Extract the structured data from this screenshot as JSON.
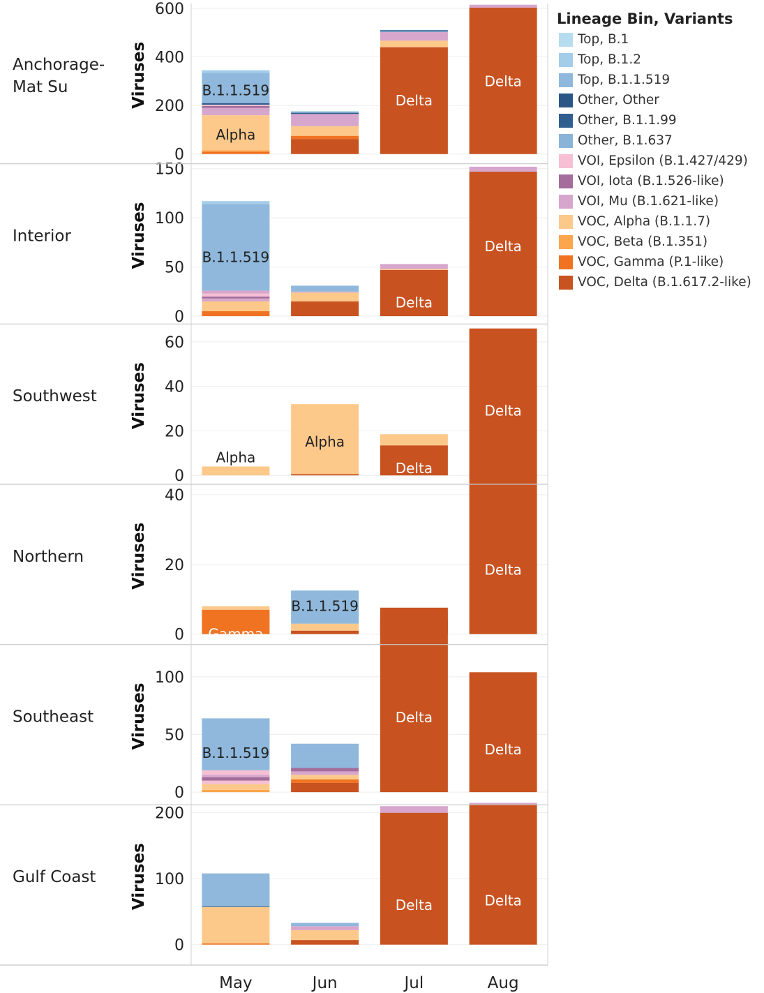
{
  "chart_data": {
    "type": "bar",
    "stacked": true,
    "y_axis_title": "Viruses",
    "x_categories": [
      "May",
      "Jun",
      "Jul",
      "Aug"
    ],
    "legend": {
      "title": "Lineage Bin, Variants",
      "placement": "right",
      "items": [
        {
          "key": "top_b1",
          "label": "Top, B.1",
          "color": "#b6dcef"
        },
        {
          "key": "top_b12",
          "label": "Top, B.1.2",
          "color": "#a4cde9"
        },
        {
          "key": "top_b11519",
          "label": "Top, B.1.1.519",
          "color": "#8fb8dc"
        },
        {
          "key": "other_other",
          "label": "Other,  Other",
          "color": "#2b5686"
        },
        {
          "key": "other_b1199",
          "label": "Other, B.1.1.99",
          "color": "#2f5e8f"
        },
        {
          "key": "other_b1637",
          "label": "Other, B.1.637",
          "color": "#8ab4d7"
        },
        {
          "key": "voi_epsilon",
          "label": "VOI, Epsilon (B.1.427/429)",
          "color": "#f6bfd3"
        },
        {
          "key": "voi_iota",
          "label": "VOI, Iota (B.1.526-like)",
          "color": "#a46d9b"
        },
        {
          "key": "voi_mu",
          "label": "VOI, Mu (B.1.621-like)",
          "color": "#d7a6cc"
        },
        {
          "key": "voc_alpha",
          "label": "VOC, Alpha (B.1.1.7)",
          "color": "#fdc98b"
        },
        {
          "key": "voc_beta",
          "label": "VOC, Beta (B.1.351)",
          "color": "#fba54c"
        },
        {
          "key": "voc_gamma",
          "label": "VOC, Gamma (P.1-like)",
          "color": "#f07322"
        },
        {
          "key": "voc_delta",
          "label": "VOC, Delta (B.1.617.2-like)",
          "color": "#c85220"
        }
      ]
    },
    "panels": [
      {
        "region": "Anchorage-\nMat Su",
        "ticks": [
          0,
          200,
          400,
          600
        ],
        "ylim": [
          -40,
          620
        ],
        "bars": [
          {
            "segments": [
              [
                "voc_gamma",
                10
              ],
              [
                "voc_beta",
                5
              ],
              [
                "voc_alpha",
                145
              ],
              [
                "voi_mu",
                30
              ],
              [
                "voi_iota",
                8
              ],
              [
                "voi_epsilon",
                5
              ],
              [
                "other_b1199",
                7
              ],
              [
                "top_b11519",
                125
              ],
              [
                "top_b12",
                8
              ],
              [
                "top_b1",
                3
              ]
            ],
            "labels": [
              {
                "text": "Alpha",
                "value": 80,
                "color": "#222222"
              },
              {
                "text": "B.1.1.519",
                "value": 262,
                "color": "#222222"
              }
            ]
          },
          {
            "segments": [
              [
                "voc_delta",
                62
              ],
              [
                "voc_gamma",
                13
              ],
              [
                "voc_alpha",
                40
              ],
              [
                "voi_mu",
                50
              ],
              [
                "other_b1199",
                5
              ],
              [
                "top_b11519",
                5
              ],
              [
                "top_b1",
                2
              ]
            ],
            "labels": []
          },
          {
            "segments": [
              [
                "voc_delta",
                440
              ],
              [
                "voc_alpha",
                27
              ],
              [
                "voi_mu",
                35
              ],
              [
                "top_b11519",
                3
              ],
              [
                "other_b1199",
                5
              ]
            ],
            "labels": [
              {
                "text": "Delta",
                "value": 220,
                "color": "#ffffff"
              }
            ]
          },
          {
            "segments": [
              [
                "voc_delta",
                603
              ],
              [
                "voi_mu",
                12
              ]
            ],
            "labels": [
              {
                "text": "Delta",
                "value": 300,
                "color": "#ffffff"
              }
            ]
          }
        ]
      },
      {
        "region": "Interior",
        "ticks": [
          0,
          50,
          100,
          150
        ],
        "ylim": [
          -8,
          155
        ],
        "bars": [
          {
            "segments": [
              [
                "voc_gamma",
                5
              ],
              [
                "voc_alpha",
                10
              ],
              [
                "voi_mu",
                3
              ],
              [
                "voi_iota",
                2
              ],
              [
                "voi_epsilon",
                3
              ],
              [
                "voi_mu",
                3
              ],
              [
                "top_b11519",
                88
              ],
              [
                "top_b12",
                3
              ]
            ],
            "labels": [
              {
                "text": "B.1.1.519",
                "value": 60,
                "color": "#222222"
              }
            ]
          },
          {
            "segments": [
              [
                "voc_delta",
                15
              ],
              [
                "voc_alpha",
                9
              ],
              [
                "voi_mu",
                1
              ],
              [
                "top_b11519",
                6
              ]
            ],
            "labels": []
          },
          {
            "segments": [
              [
                "voc_delta",
                47
              ],
              [
                "voc_alpha",
                1
              ],
              [
                "voi_mu",
                5
              ]
            ],
            "labels": [
              {
                "text": "Delta",
                "value": 14,
                "color": "#ffffff"
              }
            ]
          },
          {
            "segments": [
              [
                "voc_delta",
                147
              ],
              [
                "voi_mu",
                5
              ]
            ],
            "labels": [
              {
                "text": "Delta",
                "value": 71,
                "color": "#ffffff"
              }
            ]
          }
        ]
      },
      {
        "region": "Southwest",
        "ticks": [
          0,
          20,
          40,
          60
        ],
        "ylim": [
          -4,
          68
        ],
        "bars": [
          {
            "segments": [
              [
                "voc_alpha",
                4
              ]
            ],
            "labels": [
              {
                "text": "Alpha",
                "value": 8,
                "color": "#222222"
              }
            ]
          },
          {
            "segments": [
              [
                "voc_delta",
                0.6
              ],
              [
                "voc_alpha",
                31.4
              ]
            ],
            "labels": [
              {
                "text": "Alpha",
                "value": 15.2,
                "color": "#222222"
              }
            ]
          },
          {
            "segments": [
              [
                "voc_delta",
                13.5
              ],
              [
                "voc_alpha",
                5
              ]
            ],
            "labels": [
              {
                "text": "Delta",
                "value": 3.2,
                "color": "#ffffff"
              }
            ]
          },
          {
            "segments": [
              [
                "voc_delta",
                66
              ]
            ],
            "labels": [
              {
                "text": "Delta",
                "value": 29,
                "color": "#ffffff"
              }
            ]
          }
        ]
      },
      {
        "region": "Northern",
        "ticks": [
          0,
          20,
          40
        ],
        "ylim": [
          -3,
          43
        ],
        "bars": [
          {
            "segments": [
              [
                "voc_gamma",
                7
              ],
              [
                "voc_alpha",
                1
              ]
            ],
            "labels": [
              {
                "text": "Gamma",
                "value": 0,
                "color": "#ffffff"
              }
            ]
          },
          {
            "segments": [
              [
                "voc_delta",
                1
              ],
              [
                "voc_alpha",
                2
              ],
              [
                "top_b11519",
                9.5
              ]
            ],
            "labels": [
              {
                "text": "B.1.1.519",
                "value": 8,
                "color": "#222222"
              }
            ]
          },
          {
            "segments": [
              [
                "voc_delta",
                4
              ],
              [
                "voc_alpha",
                1
              ],
              [
                "voi_mu",
                1.5
              ]
            ],
            "labels": []
          },
          {
            "segments": [
              [
                "voc_delta",
                46
              ]
            ],
            "labels": [
              {
                "text": "Delta",
                "value": 18.5,
                "color": "#ffffff"
              }
            ]
          }
        ]
      },
      {
        "region": "Southeast",
        "ticks": [
          0,
          50,
          100
        ],
        "ylim": [
          -11,
          128
        ],
        "bars": [
          {
            "segments": [
              [
                "voc_beta",
                2
              ],
              [
                "voc_alpha",
                5
              ],
              [
                "voi_epsilon",
                3
              ],
              [
                "voi_iota",
                3
              ],
              [
                "voi_mu",
                2
              ],
              [
                "voi_epsilon",
                4
              ],
              [
                "top_b11519",
                45
              ]
            ],
            "labels": [
              {
                "text": "B.1.1.519",
                "value": 34,
                "color": "#222222"
              }
            ]
          },
          {
            "segments": [
              [
                "voc_delta",
                8
              ],
              [
                "voc_gamma",
                3
              ],
              [
                "voc_alpha",
                4
              ],
              [
                "voi_mu",
                3
              ],
              [
                "voi_iota",
                3
              ],
              [
                "top_b11519",
                21
              ]
            ],
            "labels": []
          },
          {
            "segments": [
              [
                "voc_delta",
                160
              ]
            ],
            "labels": [
              {
                "text": "Delta",
                "value": 65,
                "color": "#ffffff"
              }
            ]
          },
          {
            "segments": [
              [
                "voc_delta",
                104
              ]
            ],
            "labels": [
              {
                "text": "Delta",
                "value": 37,
                "color": "#ffffff"
              }
            ]
          }
        ]
      },
      {
        "region": "Gulf Coast",
        "ticks": [
          0,
          100,
          200
        ],
        "ylim": [
          -31,
          212
        ],
        "bars": [
          {
            "segments": [
              [
                "voc_gamma",
                2
              ],
              [
                "voc_alpha",
                55
              ],
              [
                "other_other",
                1
              ],
              [
                "top_b11519",
                50
              ]
            ],
            "labels": []
          },
          {
            "segments": [
              [
                "voc_delta",
                7
              ],
              [
                "voc_alpha",
                15
              ],
              [
                "voi_mu",
                6
              ],
              [
                "top_b11519",
                5
              ]
            ],
            "labels": []
          },
          {
            "segments": [
              [
                "voc_delta",
                200
              ],
              [
                "voi_mu",
                10
              ]
            ],
            "labels": [
              {
                "text": "Delta",
                "value": 60,
                "color": "#ffffff"
              }
            ]
          },
          {
            "segments": [
              [
                "voc_delta",
                213
              ],
              [
                "voi_mu",
                2
              ]
            ],
            "labels": [
              {
                "text": "Delta",
                "value": 67,
                "color": "#ffffff"
              }
            ]
          }
        ]
      }
    ]
  }
}
